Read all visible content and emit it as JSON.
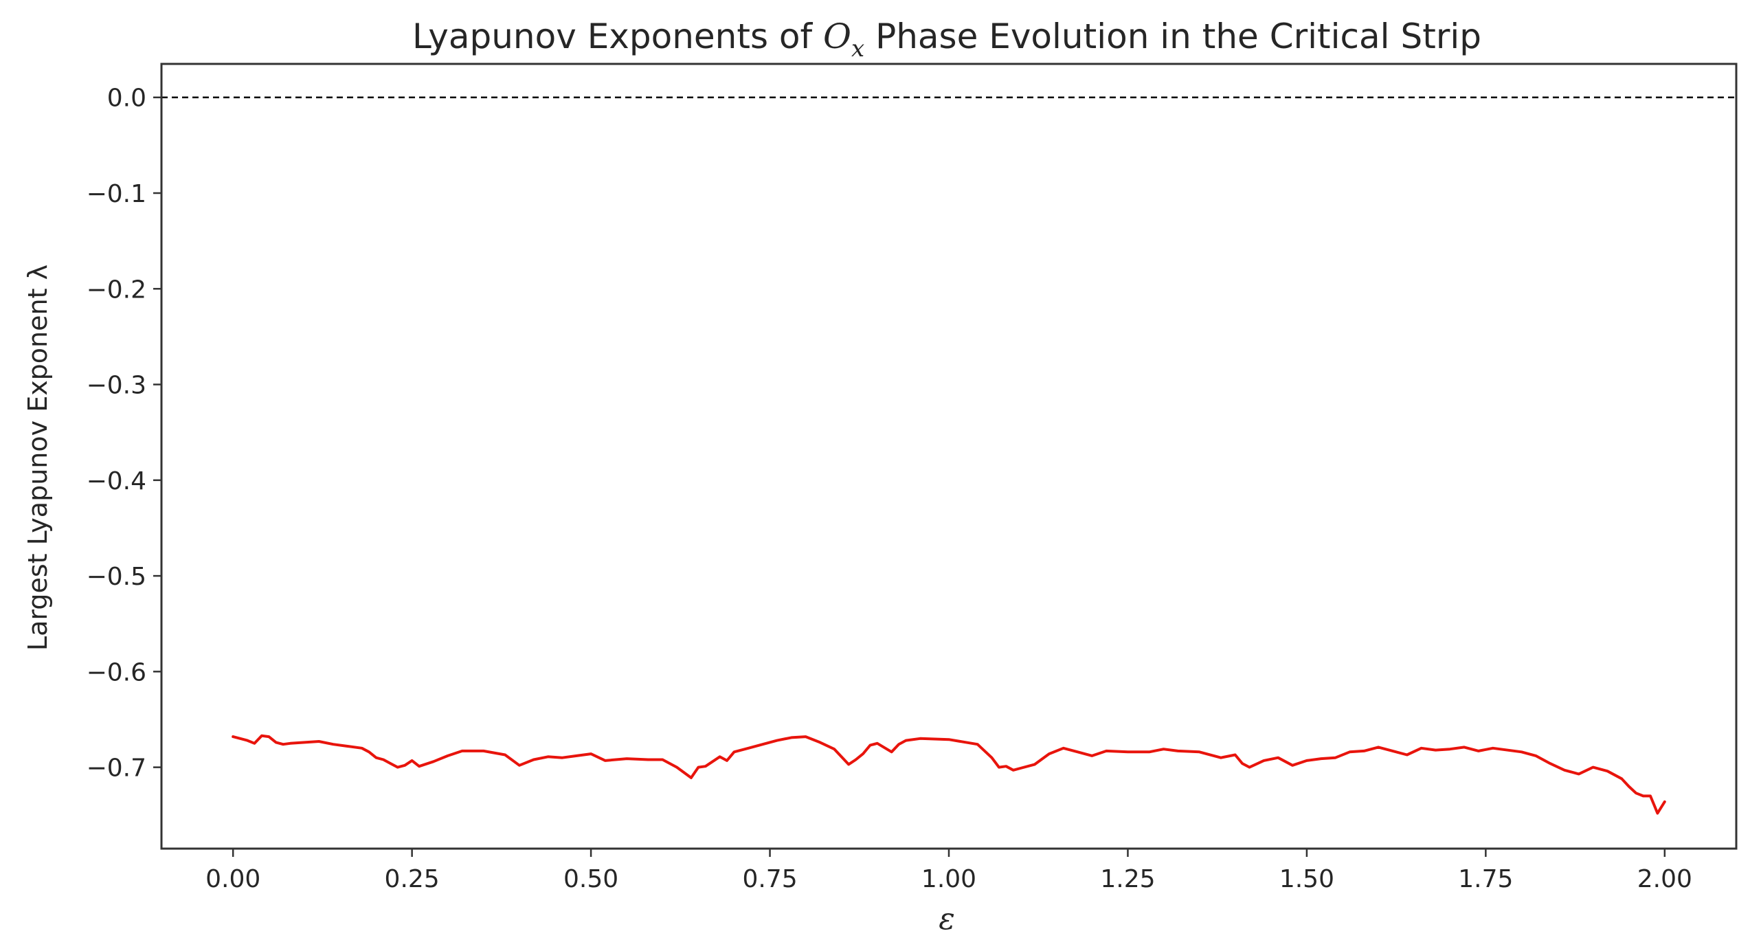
{
  "chart_data": {
    "type": "line",
    "title_parts": {
      "prefix": "Lyapunov Exponents of ",
      "symbol": "O",
      "subscript": "x",
      "suffix": " Phase Evolution in the Critical Strip"
    },
    "xlabel": "ε",
    "ylabel": "Largest Lyapunov Exponent λ",
    "xlim": [
      -0.1,
      2.1
    ],
    "ylim": [
      -0.785,
      0.035
    ],
    "xticks": [
      0.0,
      0.25,
      0.5,
      0.75,
      1.0,
      1.25,
      1.5,
      1.75,
      2.0
    ],
    "xtick_labels": [
      "0.00",
      "0.25",
      "0.50",
      "0.75",
      "1.00",
      "1.25",
      "1.50",
      "1.75",
      "2.00"
    ],
    "yticks": [
      0.0,
      -0.1,
      -0.2,
      -0.3,
      -0.4,
      -0.5,
      -0.6,
      -0.7
    ],
    "ytick_labels": [
      "0.0",
      "−0.1",
      "−0.2",
      "−0.3",
      "−0.4",
      "−0.5",
      "−0.6",
      "−0.7"
    ],
    "reference_line": {
      "y": 0.0,
      "style": "dashed",
      "color": "#000000"
    },
    "grid": false,
    "series": [
      {
        "color": "#e8140c",
        "x": [
          0.0,
          0.02,
          0.03,
          0.04,
          0.05,
          0.06,
          0.07,
          0.08,
          0.1,
          0.12,
          0.14,
          0.16,
          0.18,
          0.19,
          0.2,
          0.21,
          0.22,
          0.23,
          0.24,
          0.25,
          0.26,
          0.28,
          0.3,
          0.32,
          0.35,
          0.38,
          0.4,
          0.42,
          0.44,
          0.46,
          0.48,
          0.5,
          0.52,
          0.55,
          0.58,
          0.6,
          0.62,
          0.64,
          0.65,
          0.66,
          0.68,
          0.69,
          0.7,
          0.72,
          0.74,
          0.76,
          0.78,
          0.8,
          0.82,
          0.84,
          0.86,
          0.87,
          0.88,
          0.89,
          0.9,
          0.92,
          0.93,
          0.94,
          0.96,
          1.0,
          1.04,
          1.06,
          1.07,
          1.08,
          1.09,
          1.1,
          1.12,
          1.14,
          1.16,
          1.18,
          1.2,
          1.22,
          1.25,
          1.28,
          1.3,
          1.32,
          1.35,
          1.38,
          1.4,
          1.41,
          1.42,
          1.44,
          1.46,
          1.48,
          1.5,
          1.52,
          1.54,
          1.56,
          1.58,
          1.6,
          1.62,
          1.64,
          1.66,
          1.68,
          1.7,
          1.72,
          1.74,
          1.76,
          1.8,
          1.82,
          1.84,
          1.86,
          1.88,
          1.9,
          1.92,
          1.94,
          1.95,
          1.96,
          1.97,
          1.98,
          1.985,
          1.99,
          2.0
        ],
        "y": [
          -0.668,
          -0.672,
          -0.675,
          -0.667,
          -0.668,
          -0.674,
          -0.676,
          -0.675,
          -0.674,
          -0.673,
          -0.676,
          -0.678,
          -0.68,
          -0.684,
          -0.69,
          -0.692,
          -0.696,
          -0.7,
          -0.698,
          -0.693,
          -0.699,
          -0.694,
          -0.688,
          -0.683,
          -0.683,
          -0.687,
          -0.698,
          -0.692,
          -0.689,
          -0.69,
          -0.688,
          -0.686,
          -0.693,
          -0.691,
          -0.692,
          -0.692,
          -0.7,
          -0.711,
          -0.7,
          -0.699,
          -0.689,
          -0.693,
          -0.684,
          -0.68,
          -0.676,
          -0.672,
          -0.669,
          -0.668,
          -0.674,
          -0.681,
          -0.697,
          -0.692,
          -0.686,
          -0.677,
          -0.675,
          -0.684,
          -0.676,
          -0.672,
          -0.67,
          -0.671,
          -0.676,
          -0.69,
          -0.7,
          -0.699,
          -0.703,
          -0.701,
          -0.697,
          -0.686,
          -0.68,
          -0.684,
          -0.688,
          -0.683,
          -0.684,
          -0.684,
          -0.681,
          -0.683,
          -0.684,
          -0.69,
          -0.687,
          -0.696,
          -0.7,
          -0.693,
          -0.69,
          -0.698,
          -0.693,
          -0.691,
          -0.69,
          -0.684,
          -0.683,
          -0.679,
          -0.683,
          -0.687,
          -0.68,
          -0.682,
          -0.681,
          -0.679,
          -0.683,
          -0.68,
          -0.684,
          -0.688,
          -0.696,
          -0.703,
          -0.707,
          -0.7,
          -0.704,
          -0.712,
          -0.72,
          -0.727,
          -0.73,
          -0.73,
          -0.739,
          -0.748,
          -0.736
        ]
      }
    ]
  }
}
